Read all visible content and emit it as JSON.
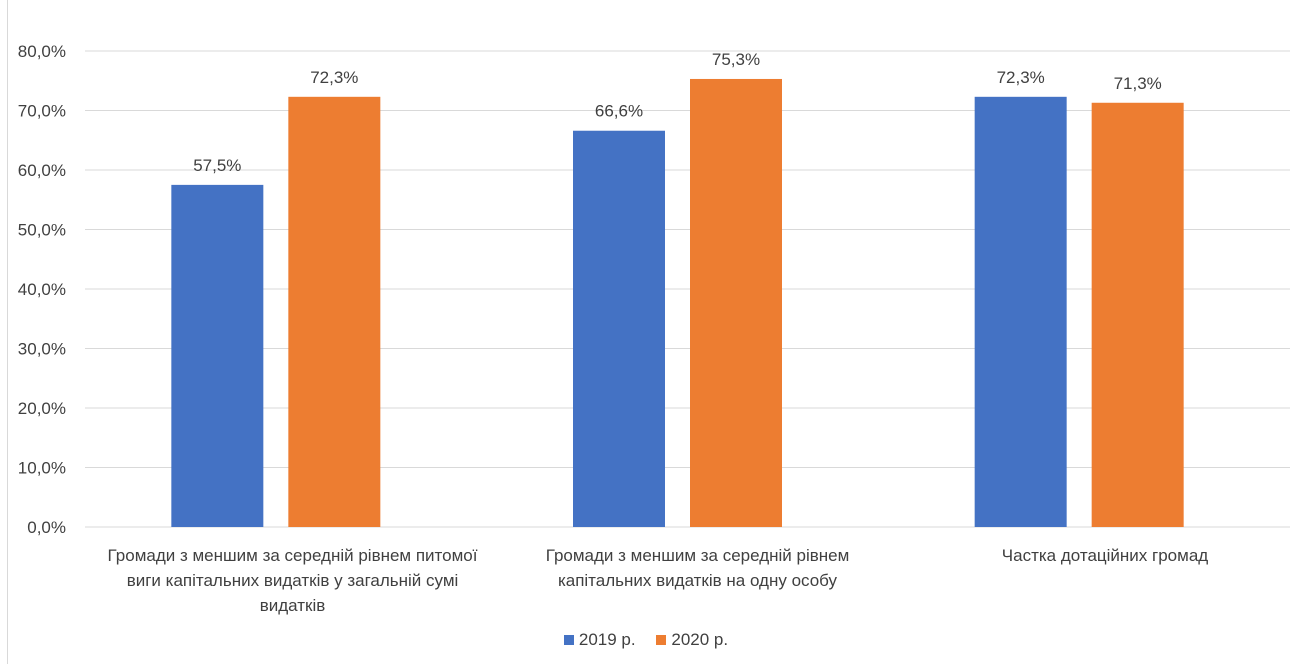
{
  "chart_data": {
    "type": "bar",
    "categories": [
      "Громади з меншим за середній рівнем питомої виги капітальних видатків у загальній сумі видатків",
      "Громади з меншим за середній рівнем капітальних видатків на одну особу",
      "Частка дотаційних громад"
    ],
    "series": [
      {
        "name": "2019 р.",
        "color": "#4472C4",
        "values": [
          57.5,
          66.6,
          72.3
        ],
        "labels": [
          "57,5%",
          "66,6%",
          "72,3%"
        ]
      },
      {
        "name": "2020 р.",
        "color": "#ED7D31",
        "values": [
          72.3,
          75.3,
          71.3
        ],
        "labels": [
          "72,3%",
          "75,3%",
          "71,3%"
        ]
      }
    ],
    "y_ticks": [
      "0,0%",
      "10,0%",
      "20,0%",
      "30,0%",
      "40,0%",
      "50,0%",
      "60,0%",
      "70,0%",
      "80,0%"
    ],
    "ylim": [
      0,
      80
    ],
    "grid": true,
    "legend_position": "bottom",
    "title": "",
    "xlabel": "",
    "ylabel": ""
  }
}
